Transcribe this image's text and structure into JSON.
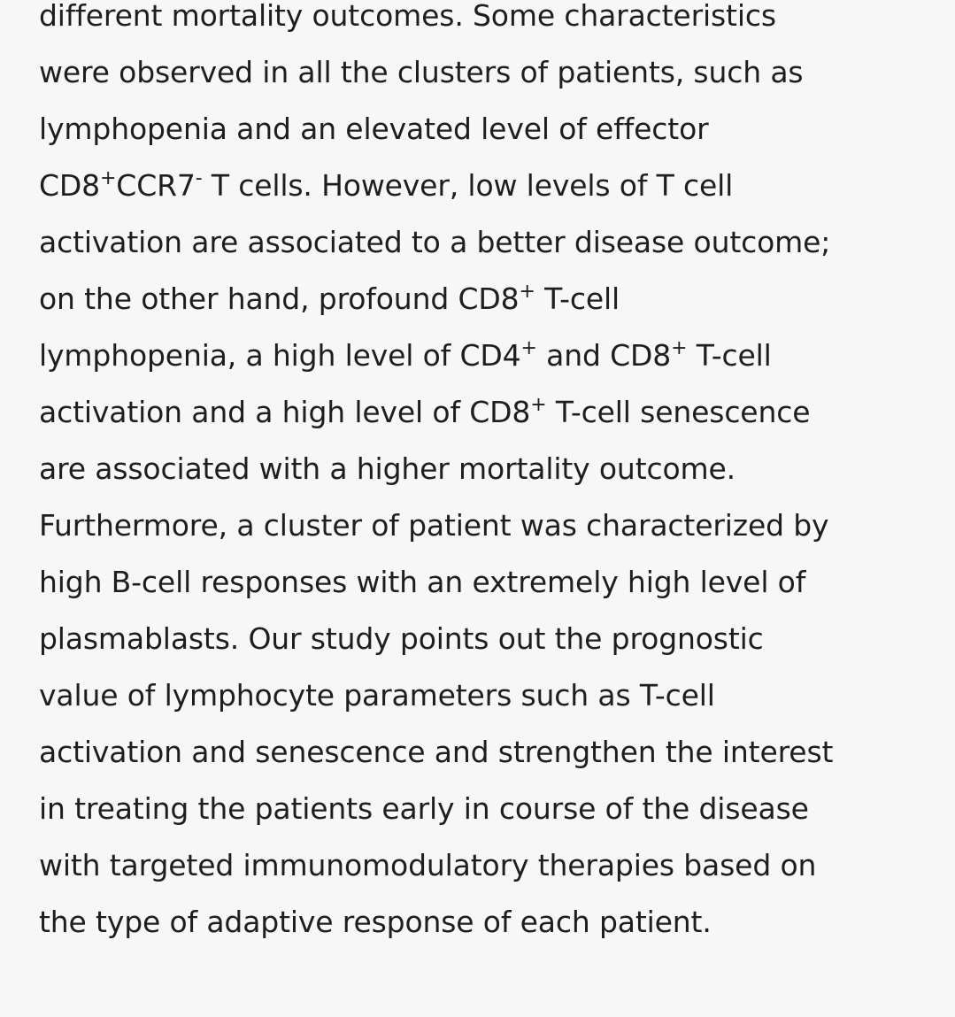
{
  "abstract": {
    "lines": [
      {
        "a": "different mortality outcomes. Some characteristics"
      },
      {
        "a": "were observed in all the clusters of patients, such as"
      },
      {
        "a": "lymphopenia and an elevated level of effector"
      },
      {
        "a": "CD8",
        "b": "+",
        "c": "CCR7",
        "d": "-",
        "e": " T cells. However, low levels of T cell"
      },
      {
        "a": "activation are associated to a better disease outcome;"
      },
      {
        "a": "on the other hand, profound CD8",
        "b": "+",
        "c": " T-cell"
      },
      {
        "a": "lymphopenia, a high level of CD4",
        "b": "+",
        "c": " and CD8",
        "d": "+",
        "e": " T-cell"
      },
      {
        "a": "activation and a high level of CD8",
        "b": "+",
        "c": " T-cell senescence"
      },
      {
        "a": "are associated with a higher mortality outcome."
      },
      {
        "a": "Furthermore, a cluster of patient was characterized by"
      },
      {
        "a": "high B-cell responses with an extremely high level of"
      },
      {
        "a": "plasmablasts. Our study points out the prognostic"
      },
      {
        "a": "value of lymphocyte parameters such as T-cell"
      },
      {
        "a": "activation and senescence and strengthen the interest"
      },
      {
        "a": "in treating the patients early in course of the disease"
      },
      {
        "a": "with targeted immunomodulatory therapies based on"
      },
      {
        "a": "the type of adaptive response of each patient."
      }
    ]
  }
}
